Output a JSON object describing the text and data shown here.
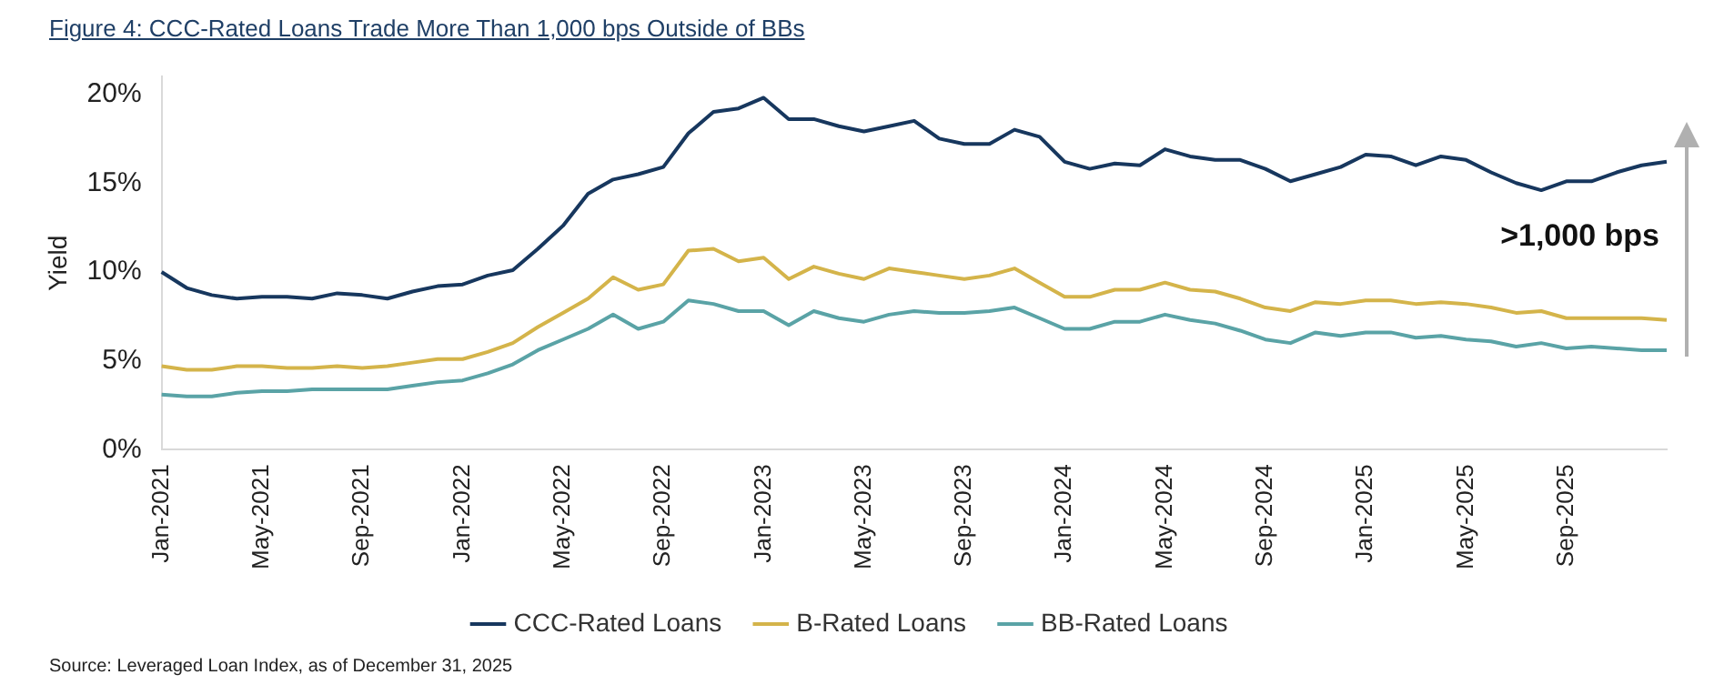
{
  "chart_data": {
    "type": "line",
    "title": "Figure 4: CCC-Rated Loans Trade More Than 1,000 bps Outside of BBs",
    "ylabel": "Yield",
    "categories": [
      "Jan-2021",
      null,
      null,
      null,
      "May-2021",
      null,
      null,
      null,
      "Sep-2021",
      null,
      null,
      null,
      "Jan-2022",
      null,
      null,
      null,
      "May-2022",
      null,
      null,
      null,
      "Sep-2022",
      null,
      null,
      null,
      "Jan-2023",
      null,
      null,
      null,
      "May-2023",
      null,
      null,
      null,
      "Sep-2023",
      null,
      null,
      null,
      "Jan-2024",
      null,
      null,
      null,
      "May-2024",
      null,
      null,
      null,
      "Sep-2024",
      null,
      null,
      null,
      "Jan-2025",
      null,
      null,
      null,
      "May-2025",
      null,
      null,
      null,
      "Sep-2025",
      null,
      null,
      null,
      null
    ],
    "series": [
      {
        "name": "CCC-Rated Loans",
        "color": "#17375e",
        "values": [
          10.0,
          9.1,
          8.7,
          8.5,
          8.6,
          8.6,
          8.5,
          8.8,
          8.7,
          8.5,
          8.9,
          9.2,
          9.3,
          9.8,
          10.1,
          11.3,
          12.6,
          14.4,
          15.2,
          15.5,
          15.9,
          17.8,
          19.0,
          19.2,
          19.8,
          18.6,
          18.6,
          18.2,
          17.9,
          18.2,
          18.5,
          17.5,
          17.2,
          17.2,
          18.0,
          17.6,
          16.2,
          15.8,
          16.1,
          16.0,
          16.9,
          16.5,
          16.3,
          16.3,
          15.8,
          15.1,
          15.5,
          15.9,
          16.6,
          16.5,
          16.0,
          16.5,
          16.3,
          15.6,
          15.0,
          14.6,
          15.1,
          15.1,
          15.6,
          16.0,
          16.2
        ]
      },
      {
        "name": "B-Rated Loans",
        "color": "#d4b44a",
        "values": [
          4.7,
          4.5,
          4.5,
          4.7,
          4.7,
          4.6,
          4.6,
          4.7,
          4.6,
          4.7,
          4.9,
          5.1,
          5.1,
          5.5,
          6.0,
          6.9,
          7.7,
          8.5,
          9.7,
          9.0,
          9.3,
          11.2,
          11.3,
          10.6,
          10.8,
          9.6,
          10.3,
          9.9,
          9.6,
          10.2,
          10.0,
          9.8,
          9.6,
          9.8,
          10.2,
          9.4,
          8.6,
          8.6,
          9.0,
          9.0,
          9.4,
          9.0,
          8.9,
          8.5,
          8.0,
          7.8,
          8.3,
          8.2,
          8.4,
          8.4,
          8.2,
          8.3,
          8.2,
          8.0,
          7.7,
          7.8,
          7.4,
          7.4,
          7.4,
          7.4,
          7.3
        ]
      },
      {
        "name": "BB-Rated Loans",
        "color": "#5aa3a6",
        "values": [
          3.1,
          3.0,
          3.0,
          3.2,
          3.3,
          3.3,
          3.4,
          3.4,
          3.4,
          3.4,
          3.6,
          3.8,
          3.9,
          4.3,
          4.8,
          5.6,
          6.2,
          6.8,
          7.6,
          6.8,
          7.2,
          8.4,
          8.2,
          7.8,
          7.8,
          7.0,
          7.8,
          7.4,
          7.2,
          7.6,
          7.8,
          7.7,
          7.7,
          7.8,
          8.0,
          7.4,
          6.8,
          6.8,
          7.2,
          7.2,
          7.6,
          7.3,
          7.1,
          6.7,
          6.2,
          6.0,
          6.6,
          6.4,
          6.6,
          6.6,
          6.3,
          6.4,
          6.2,
          6.1,
          5.8,
          6.0,
          5.7,
          5.8,
          5.7,
          5.6,
          5.6
        ]
      }
    ],
    "ylim": [
      0,
      21
    ],
    "yticks": [
      {
        "value": 0,
        "label": "0%"
      },
      {
        "value": 5,
        "label": "5%"
      },
      {
        "value": 10,
        "label": "10%"
      },
      {
        "value": 15,
        "label": "15%"
      },
      {
        "value": 20,
        "label": "20%"
      }
    ],
    "grid": false,
    "legend": "bottom",
    "marker": "none",
    "line_style": "solid",
    "annotations": [
      ">1,000 bps",
      "Source: Leveraged Loan Index, as of December 31, 2025"
    ]
  }
}
